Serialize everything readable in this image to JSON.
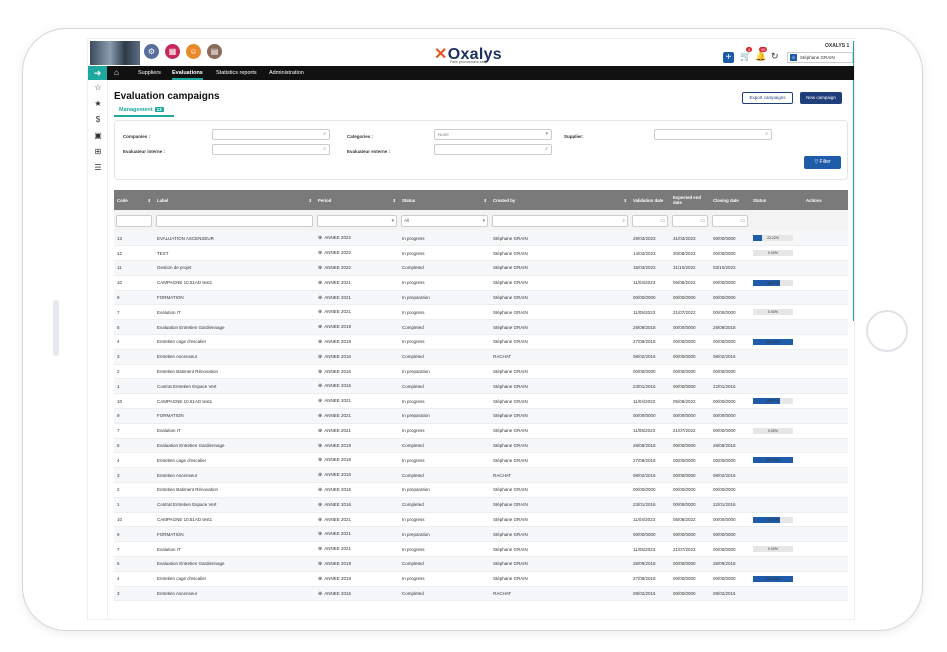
{
  "topbar": {
    "logo_x": "✕",
    "logo_text": "Oxalys",
    "tagline": "Faire procurement easy",
    "company": "OXALYS 1",
    "user": "Stéphane GRAIN",
    "user_initial": "S",
    "cart_badge": "4",
    "notif_badge": "99"
  },
  "nav": {
    "items": [
      "Suppliers",
      "Evaluations",
      "Statistics reports",
      "Administration"
    ]
  },
  "page": {
    "title": "Evaluation campaigns",
    "tab_label": "Management",
    "tab_count": "13",
    "export_label": "Export campaigns",
    "new_label": "New campaign"
  },
  "filters": {
    "companies_label": "Companies :",
    "categories_label": "Categories :",
    "categories_value": "None",
    "supplier_label": "Supplier:",
    "internal_label": "Evaluateur interne :",
    "external_label": "Evaluateur externe :",
    "filter_button": "Filter",
    "status_all": "All"
  },
  "table": {
    "headers": [
      "Code",
      "Label",
      "Period",
      "Status",
      "Created by",
      "Validation date",
      "Expected end date",
      "Closing date",
      "Status",
      "Actions"
    ],
    "rows": [
      {
        "code": "13",
        "label": "EVALUATION ASCENSEUR",
        "period": "ANNEE 2022",
        "status": "In progress",
        "created": "Stéphane GRAIN",
        "validation": "29/03/2023",
        "expected": "31/03/2023",
        "closing": "00/00/0000",
        "progress": "22.22%",
        "pct": 0.2222
      },
      {
        "code": "12",
        "label": "TEST",
        "period": "ANNEE 2022",
        "status": "In progress",
        "created": "Stéphane GRAIN",
        "validation": "14/04/2023",
        "expected": "30/08/2022",
        "closing": "00/00/0000",
        "progress": "0.00%",
        "pct": 0
      },
      {
        "code": "11",
        "label": "Gestion de projet",
        "period": "ANNEE 2022",
        "status": "Completed",
        "created": "Stéphane GRAIN",
        "validation": "15/03/2023",
        "expected": "31/10/2022",
        "closing": "03/10/2023",
        "progress": "",
        "pct": null
      },
      {
        "code": "10",
        "label": "CAMPAGNE 10.51AD test1",
        "period": "ANNEE 2021",
        "status": "In progress",
        "created": "Stéphane GRAIN",
        "validation": "11/04/2023",
        "expected": "05/08/2022",
        "closing": "00/00/0000",
        "progress": "66.67%",
        "pct": 0.6667
      },
      {
        "code": "9",
        "label": "FORMATION",
        "period": "ANNEE 2021",
        "status": "In preparation",
        "created": "Stéphane GRAIN",
        "validation": "00/00/0000",
        "expected": "00/00/0000",
        "closing": "00/00/0000",
        "progress": "",
        "pct": null
      },
      {
        "code": "7",
        "label": "Evalution IT",
        "period": "ANNEE 2021",
        "status": "In progress",
        "created": "Stéphane GRAIN",
        "validation": "11/05/2023",
        "expected": "21/07/2022",
        "closing": "00/00/0000",
        "progress": "0.00%",
        "pct": 0
      },
      {
        "code": "5",
        "label": "Evaluation Entretien Gardiennage",
        "period": "ANNEE 2019",
        "status": "Completed",
        "created": "Stéphane GRAIN",
        "validation": "28/09/2018",
        "expected": "00/00/0000",
        "closing": "28/09/2018",
        "progress": "",
        "pct": null
      },
      {
        "code": "4",
        "label": "Entretien cage d'escalier",
        "period": "ANNEE 2019",
        "status": "In progress",
        "created": "Stéphane GRAIN",
        "validation": "27/09/2018",
        "expected": "00/00/0000",
        "closing": "00/00/0000",
        "progress": "100.00%",
        "pct": 1
      },
      {
        "code": "3",
        "label": "Entretien Ascenseur",
        "period": "ANNEE 2016",
        "status": "Completed",
        "created": "RACHAT",
        "validation": "08/02/2016",
        "expected": "00/00/0000",
        "closing": "08/02/2016",
        "progress": "",
        "pct": null
      },
      {
        "code": "2",
        "label": "Entretien Batiment Rénovation",
        "period": "ANNEE 2016",
        "status": "In preparation",
        "created": "Stéphane GRAIN",
        "validation": "00/00/0000",
        "expected": "00/00/0000",
        "closing": "00/00/0000",
        "progress": "",
        "pct": null
      },
      {
        "code": "1",
        "label": "Contrat Entretien Espace Vert",
        "period": "ANNEE 2016",
        "status": "Completed",
        "created": "Stéphane GRAIN",
        "validation": "23/01/2016",
        "expected": "00/00/0000",
        "closing": "22/01/2016",
        "progress": "",
        "pct": null
      },
      {
        "code": "10",
        "label": "CAMPAGNE 10.51AD test1",
        "period": "ANNEE 2021",
        "status": "In progress",
        "created": "Stéphane GRAIN",
        "validation": "11/04/2023",
        "expected": "05/08/2022",
        "closing": "00/00/0000",
        "progress": "66.67%",
        "pct": 0.6667
      },
      {
        "code": "9",
        "label": "FORMATION",
        "period": "ANNEE 2021",
        "status": "In preparation",
        "created": "Stéphane GRAIN",
        "validation": "00/00/0000",
        "expected": "00/00/0000",
        "closing": "00/00/0000",
        "progress": "",
        "pct": null
      },
      {
        "code": "7",
        "label": "Evalution IT",
        "period": "ANNEE 2021",
        "status": "In progress",
        "created": "Stéphane GRAIN",
        "validation": "11/05/2023",
        "expected": "21/07/2022",
        "closing": "00/00/0000",
        "progress": "0.00%",
        "pct": 0
      },
      {
        "code": "5",
        "label": "Evaluation Entretien Gardiennage",
        "period": "ANNEE 2019",
        "status": "Completed",
        "created": "Stéphane GRAIN",
        "validation": "28/09/2018",
        "expected": "00/00/0000",
        "closing": "28/09/2018",
        "progress": "",
        "pct": null
      },
      {
        "code": "4",
        "label": "Entretien cage d'escalier",
        "period": "ANNEE 2019",
        "status": "In progress",
        "created": "Stéphane GRAIN",
        "validation": "27/09/2018",
        "expected": "00/00/0000",
        "closing": "00/00/0000",
        "progress": "100.00%",
        "pct": 1
      },
      {
        "code": "3",
        "label": "Entretien Ascenseur",
        "period": "ANNEE 2016",
        "status": "Completed",
        "created": "RACHAT",
        "validation": "08/02/2016",
        "expected": "00/00/0000",
        "closing": "08/02/2016",
        "progress": "",
        "pct": null
      },
      {
        "code": "2",
        "label": "Entretien Batiment Rénovation",
        "period": "ANNEE 2016",
        "status": "In preparation",
        "created": "Stéphane GRAIN",
        "validation": "00/00/0000",
        "expected": "00/00/0000",
        "closing": "00/00/0000",
        "progress": "",
        "pct": null
      },
      {
        "code": "1",
        "label": "Contrat Entretien Espace Vert",
        "period": "ANNEE 2016",
        "status": "Completed",
        "created": "Stéphane GRAIN",
        "validation": "23/01/2016",
        "expected": "00/00/0000",
        "closing": "22/01/2016",
        "progress": "",
        "pct": null
      },
      {
        "code": "10",
        "label": "CAMPAGNE 10.51AD test1",
        "period": "ANNEE 2021",
        "status": "In progress",
        "created": "Stéphane GRAIN",
        "validation": "11/04/2023",
        "expected": "05/08/2022",
        "closing": "00/00/0000",
        "progress": "66.67%",
        "pct": 0.6667
      },
      {
        "code": "9",
        "label": "FORMATION",
        "period": "ANNEE 2021",
        "status": "In preparation",
        "created": "Stéphane GRAIN",
        "validation": "00/00/0000",
        "expected": "00/00/0000",
        "closing": "00/00/0000",
        "progress": "",
        "pct": null
      },
      {
        "code": "7",
        "label": "Evalution IT",
        "period": "ANNEE 2021",
        "status": "In progress",
        "created": "Stéphane GRAIN",
        "validation": "11/05/2023",
        "expected": "21/07/2022",
        "closing": "00/00/0000",
        "progress": "0.00%",
        "pct": 0
      },
      {
        "code": "5",
        "label": "Evaluation Entretien Gardiennage",
        "period": "ANNEE 2019",
        "status": "Completed",
        "created": "Stéphane GRAIN",
        "validation": "28/09/2018",
        "expected": "00/00/0000",
        "closing": "28/09/2018",
        "progress": "",
        "pct": null
      },
      {
        "code": "4",
        "label": "Entretien cage d'escalier",
        "period": "ANNEE 2019",
        "status": "In progress",
        "created": "Stéphane GRAIN",
        "validation": "27/09/2018",
        "expected": "00/00/0000",
        "closing": "00/00/0000",
        "progress": "100.00%",
        "pct": 1
      },
      {
        "code": "3",
        "label": "Entretien Ascenseur",
        "period": "ANNEE 2016",
        "status": "Completed",
        "created": "RACHAT",
        "validation": "08/02/2016",
        "expected": "00/00/0000",
        "closing": "08/02/2016",
        "progress": "",
        "pct": null
      }
    ]
  },
  "colors": {
    "accent": "#1fa8a0",
    "primary": "#1e3f7a",
    "progress": "#1e5ba8",
    "header_gray": "#7a7a7a"
  }
}
